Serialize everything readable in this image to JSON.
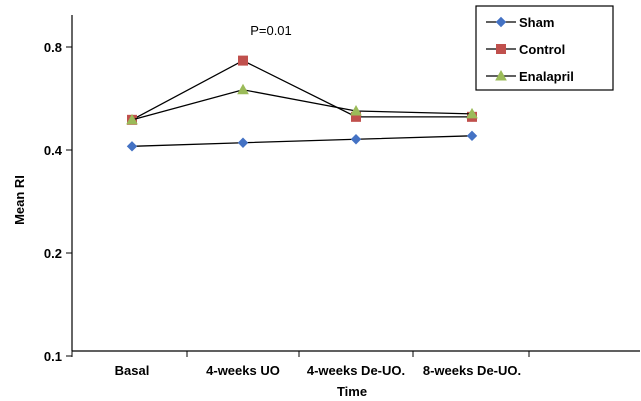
{
  "chart_data": {
    "type": "line",
    "title": "",
    "xlabel": "Time",
    "ylabel": "Mean  RI",
    "y_scale": "log",
    "ylim": [
      0.1,
      1.0
    ],
    "yticks": [
      0.1,
      0.2,
      0.4,
      0.8
    ],
    "ytick_labels": [
      "0.1",
      "0.2",
      "0.4",
      "0.8"
    ],
    "categories": [
      "Basal",
      "4-weeks UO",
      "4-weeks De-UO.",
      "8-weeks De-UO."
    ],
    "annotation": "P=0.01",
    "legend_position": "top-right",
    "grid": false,
    "series": [
      {
        "name": "Sham",
        "color": "#4472C4",
        "marker": "diamond",
        "values": [
          0.41,
          0.42,
          0.43,
          0.44
        ]
      },
      {
        "name": "Control",
        "color": "#C0504D",
        "marker": "square",
        "values": [
          0.49,
          0.73,
          0.5,
          0.5
        ]
      },
      {
        "name": "Enalapril",
        "color": "#9BBB59",
        "marker": "triangle",
        "values": [
          0.49,
          0.6,
          0.52,
          0.51
        ]
      }
    ]
  }
}
